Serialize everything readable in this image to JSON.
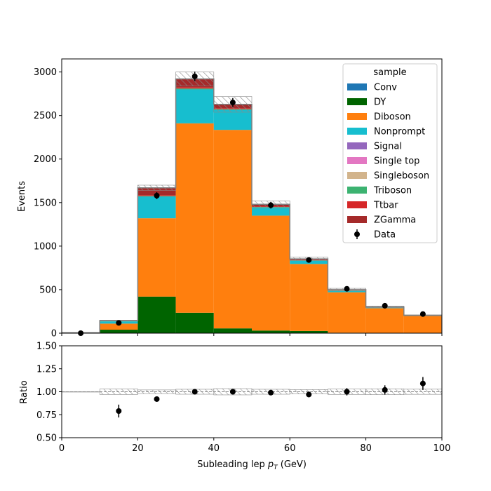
{
  "chart_data": [
    {
      "type": "bar",
      "stacked": true,
      "histogram": true,
      "bin_edges": [
        0,
        10,
        20,
        30,
        40,
        50,
        60,
        70,
        80,
        90,
        100
      ],
      "ylabel": "Events",
      "xlim": [
        0,
        100
      ],
      "ylim": [
        0,
        3150
      ],
      "yticks": [
        0,
        500,
        1000,
        1500,
        2000,
        2500,
        3000
      ],
      "legend_title": "sample",
      "legend_position": "top-right",
      "series": [
        {
          "name": "Conv",
          "color": "#1f77b4",
          "values": [
            0,
            0,
            0,
            0,
            0,
            0,
            0,
            0,
            0,
            0
          ]
        },
        {
          "name": "DY",
          "color": "#006400",
          "values": [
            3,
            40,
            420,
            235,
            55,
            30,
            25,
            5,
            2,
            2
          ]
        },
        {
          "name": "Diboson",
          "color": "#ff7f0e",
          "values": [
            2,
            70,
            900,
            2175,
            2280,
            1320,
            770,
            465,
            285,
            195
          ]
        },
        {
          "name": "Nonprompt",
          "color": "#17becf",
          "values": [
            0,
            25,
            250,
            390,
            230,
            95,
            40,
            20,
            10,
            5
          ]
        },
        {
          "name": "Signal",
          "color": "#9467bd",
          "values": [
            0,
            0,
            0,
            0,
            0,
            0,
            0,
            0,
            0,
            0
          ]
        },
        {
          "name": "Single top",
          "color": "#e377c2",
          "values": [
            0,
            0,
            0,
            0,
            0,
            0,
            0,
            0,
            0,
            0
          ]
        },
        {
          "name": "Singleboson",
          "color": "#d2b48c",
          "values": [
            0,
            0,
            0,
            0,
            0,
            0,
            0,
            0,
            0,
            0
          ]
        },
        {
          "name": "Triboson",
          "color": "#3cb371",
          "values": [
            0,
            2,
            5,
            10,
            8,
            5,
            3,
            2,
            1,
            1
          ]
        },
        {
          "name": "Ttbar",
          "color": "#d62728",
          "values": [
            0,
            3,
            10,
            15,
            10,
            5,
            3,
            2,
            1,
            1
          ]
        },
        {
          "name": "ZGamma",
          "color": "#a52a2a",
          "values": [
            0,
            5,
            85,
            95,
            45,
            25,
            12,
            6,
            3,
            1
          ]
        }
      ],
      "uncertainty": [
        1,
        5,
        30,
        80,
        90,
        40,
        20,
        15,
        10,
        5
      ],
      "data": {
        "name": "Data",
        "x": [
          5,
          15,
          25,
          35,
          45,
          55,
          65,
          75,
          85,
          95
        ],
        "y": [
          0,
          118,
          1580,
          2950,
          2650,
          1470,
          840,
          510,
          315,
          220
        ],
        "yerr": [
          0,
          11,
          40,
          54,
          51,
          38,
          29,
          23,
          18,
          15
        ]
      }
    },
    {
      "type": "scatter",
      "xlabel": "Subleading lep $p_T$ (GeV)",
      "ylabel": "Ratio",
      "xlim": [
        0,
        100
      ],
      "ylim": [
        0.5,
        1.5
      ],
      "xticks": [
        0,
        20,
        40,
        60,
        80,
        100
      ],
      "yticks": [
        "0.50",
        "0.75",
        "1.00",
        "1.25",
        "1.50"
      ],
      "x": [
        15,
        25,
        35,
        45,
        55,
        65,
        75,
        85,
        95
      ],
      "y": [
        0.79,
        0.92,
        1.0,
        1.0,
        0.99,
        0.97,
        1.0,
        1.02,
        1.09
      ],
      "yerr": [
        0.07,
        0.02,
        0.02,
        0.02,
        0.025,
        0.03,
        0.04,
        0.05,
        0.07
      ],
      "band_halfwidth": [
        0.0,
        0.03,
        0.02,
        0.027,
        0.034,
        0.027,
        0.024,
        0.029,
        0.032,
        0.028
      ]
    }
  ]
}
